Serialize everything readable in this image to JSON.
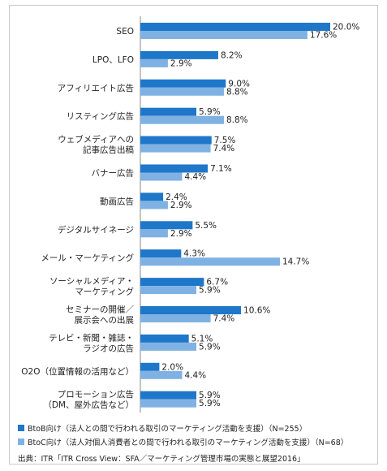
{
  "colors": {
    "btob": "#1f77c9",
    "btoc": "#7fb2e3"
  },
  "chart_data": {
    "type": "bar",
    "orientation": "horizontal",
    "categories": [
      [
        "SEO"
      ],
      [
        "LPO、LFO"
      ],
      [
        "アフィリエイト広告"
      ],
      [
        "リスティング広告"
      ],
      [
        "ウェブメディアへの",
        "記事広告出稿"
      ],
      [
        "バナー広告"
      ],
      [
        "動画広告"
      ],
      [
        "デジタルサイネージ"
      ],
      [
        "メール・マーケティング"
      ],
      [
        "ソーシャルメディア・",
        "マーケティング"
      ],
      [
        "セミナーの開催／",
        "展示会への出展"
      ],
      [
        "テレビ・新聞・雑誌・",
        "ラジオの広告"
      ],
      [
        "O2O（位置情報の活用など）"
      ],
      [
        "プロモーション広告",
        "（DM、屋外広告など）"
      ]
    ],
    "series": [
      {
        "name": "BtoB向け（法人との間で行われる取引のマーケティング活動を支援）（N=255）",
        "values": [
          20.0,
          8.2,
          9.0,
          5.9,
          7.5,
          7.1,
          2.4,
          5.5,
          4.3,
          6.7,
          10.6,
          5.1,
          2.0,
          5.9
        ]
      },
      {
        "name": "BtoC向け（法人対個人消費者との間で行われる取引のマーケティング活動を支援）（N=68）",
        "values": [
          17.6,
          2.9,
          8.8,
          8.8,
          7.4,
          4.4,
          2.9,
          2.9,
          14.7,
          5.9,
          7.4,
          5.9,
          4.4,
          5.9
        ]
      }
    ],
    "value_suffix": "%",
    "xlim": [
      0,
      20
    ],
    "grid": false,
    "legend_position": "bottom"
  },
  "source": "出典：ITR「ITR Cross View：SFA／マーケティング管理市場の実態と展望2016」"
}
